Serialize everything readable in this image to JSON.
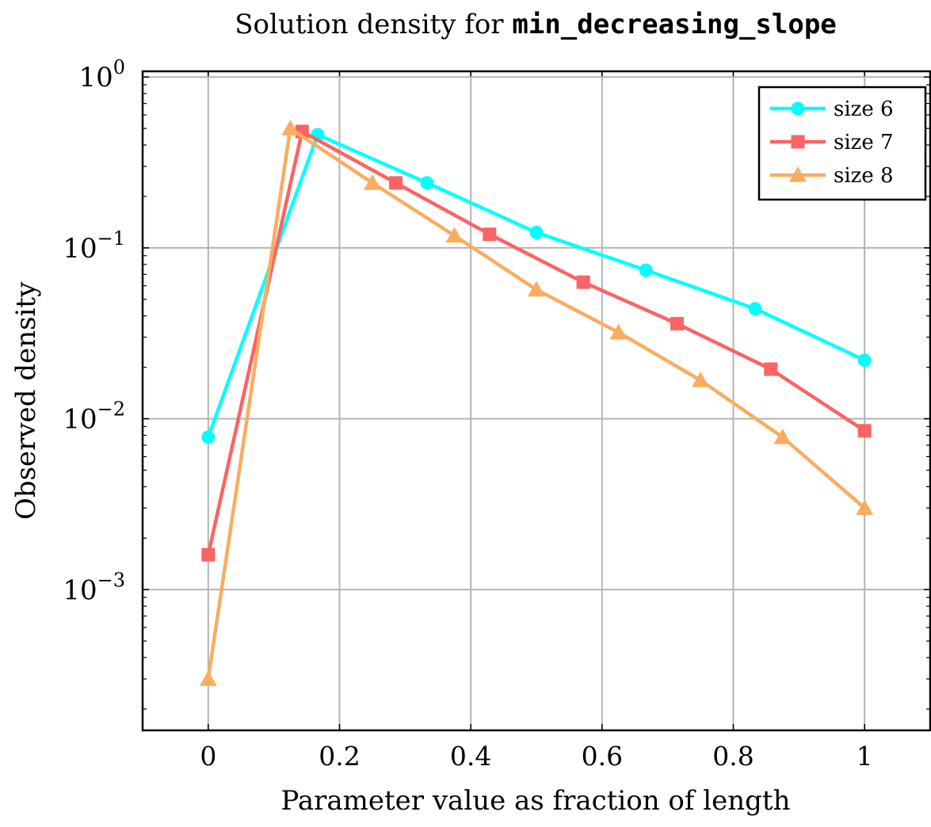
{
  "chart_data": {
    "type": "line",
    "title_prefix": "Solution density for ",
    "title_code": "min_decreasing_slope",
    "xlabel": "Parameter value as fraction of length",
    "ylabel": "Observed density",
    "xlim": [
      -0.1,
      1.1
    ],
    "ylim": [
      0.00015,
      1.08
    ],
    "yscale": "log",
    "grid": true,
    "legend_position": "top-right",
    "x_ticks": [
      {
        "value": 0,
        "label": "0"
      },
      {
        "value": 0.2,
        "label": "0.2"
      },
      {
        "value": 0.4,
        "label": "0.4"
      },
      {
        "value": 0.6,
        "label": "0.6"
      },
      {
        "value": 0.8,
        "label": "0.8"
      },
      {
        "value": 1,
        "label": "1"
      }
    ],
    "y_ticks": [
      {
        "value": 1,
        "base": "10",
        "exp": "0"
      },
      {
        "value": 0.1,
        "base": "10",
        "exp": "−1"
      },
      {
        "value": 0.01,
        "base": "10",
        "exp": "−2"
      },
      {
        "value": 0.001,
        "base": "10",
        "exp": "−3"
      }
    ],
    "series": [
      {
        "name": "size 6",
        "color": "#00ffff",
        "marker": "circle",
        "x": [
          0,
          0.1667,
          0.3333,
          0.5,
          0.6667,
          0.8333,
          1
        ],
        "y": [
          0.0078,
          0.46,
          0.24,
          0.123,
          0.074,
          0.044,
          0.022
        ]
      },
      {
        "name": "size 7",
        "color": "#fa6464",
        "marker": "square",
        "x": [
          0,
          0.1429,
          0.2857,
          0.4286,
          0.5714,
          0.7143,
          0.8571,
          1
        ],
        "y": [
          0.0016,
          0.48,
          0.24,
          0.12,
          0.063,
          0.036,
          0.0195,
          0.0085
        ]
      },
      {
        "name": "size 8",
        "color": "#f9ad5f",
        "marker": "triangle",
        "x": [
          0,
          0.125,
          0.25,
          0.375,
          0.5,
          0.625,
          0.75,
          0.875,
          1
        ],
        "y": [
          0.0003,
          0.5,
          0.24,
          0.118,
          0.057,
          0.032,
          0.0168,
          0.0078,
          0.003
        ]
      }
    ]
  }
}
